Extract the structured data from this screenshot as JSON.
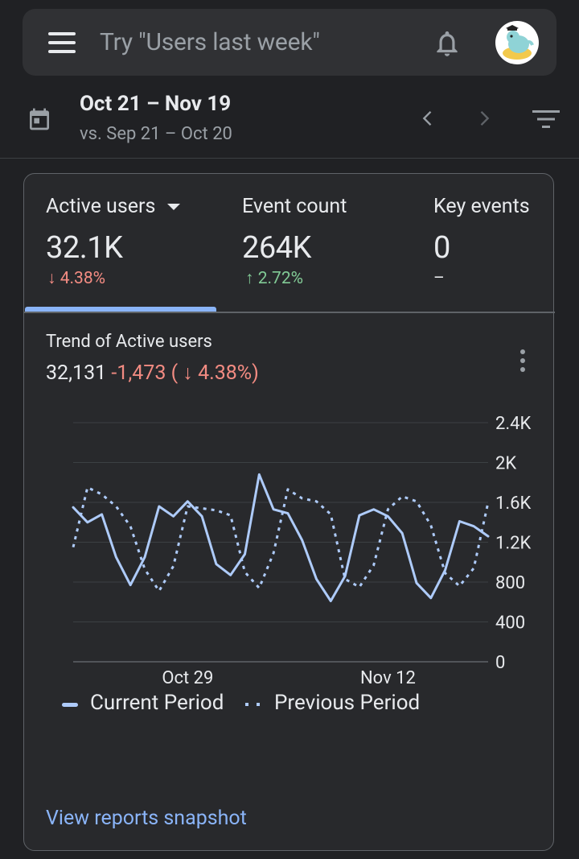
{
  "search": {
    "placeholder": "Try \"Users last week\""
  },
  "date_header": {
    "range": "Oct 21 – Nov 19",
    "compare": "vs. Sep 21 – Oct 20"
  },
  "metrics": [
    {
      "label": "Active users",
      "value": "32.1K",
      "change": "↓ 4.38%",
      "direction": "down"
    },
    {
      "label": "Event count",
      "value": "264K",
      "change": "↑ 2.72%",
      "direction": "up"
    },
    {
      "label": "Key events",
      "value": "0",
      "change": "–",
      "direction": "none"
    }
  ],
  "trend": {
    "title": "Trend of Active users",
    "total": "32,131",
    "delta": "-1,473 ( ↓ 4.38%)",
    "view_link": "View reports snapshot"
  },
  "colors": {
    "current": "#aecbfa",
    "previous": "#aecbfa",
    "down": "#f28b82",
    "up": "#81c995",
    "accent": "#8ab4f8"
  },
  "chart_data": {
    "type": "line",
    "title": "Trend of Active users",
    "xlabel": "",
    "ylabel": "",
    "ylim": [
      0,
      2400
    ],
    "yticks": [
      "0",
      "400",
      "800",
      "1.2K",
      "1.6K",
      "2K",
      "2.4K"
    ],
    "ytick_values": [
      0,
      400,
      800,
      1200,
      1600,
      2000,
      2400
    ],
    "x_tick_labels": [
      {
        "label": "Oct 29",
        "index": 8
      },
      {
        "label": "Nov 12",
        "index": 22
      }
    ],
    "series": [
      {
        "name": "Current Period",
        "style": "solid",
        "values": [
          1550,
          1400,
          1480,
          1050,
          770,
          1050,
          1560,
          1460,
          1610,
          1460,
          980,
          870,
          1080,
          1880,
          1530,
          1490,
          1220,
          830,
          610,
          860,
          1470,
          1530,
          1460,
          1290,
          790,
          640,
          920,
          1410,
          1360,
          1260
        ]
      },
      {
        "name": "Previous Period",
        "style": "dotted",
        "values": [
          1150,
          1750,
          1680,
          1560,
          1360,
          930,
          710,
          960,
          1560,
          1540,
          1520,
          1470,
          900,
          740,
          1090,
          1730,
          1640,
          1610,
          1480,
          830,
          750,
          970,
          1530,
          1660,
          1610,
          1370,
          890,
          760,
          940,
          1600
        ]
      }
    ]
  }
}
